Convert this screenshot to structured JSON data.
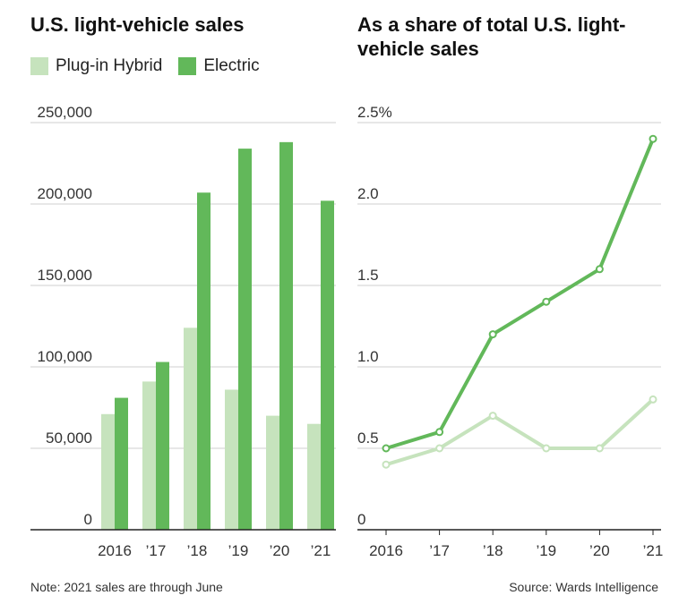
{
  "colors": {
    "phev": "#c6e3bd",
    "ev": "#62b85a",
    "grid": "#cfcfcf",
    "axis": "#222222"
  },
  "note": "Note: 2021 sales are through June",
  "source": "Source: Wards Intelligence",
  "chart_data": [
    {
      "type": "bar",
      "title": "U.S. light-vehicle sales",
      "categories": [
        "2016",
        "’17",
        "’18",
        "’19",
        "’20",
        "’21"
      ],
      "legend": [
        "Plug-in Hybrid",
        "Electric"
      ],
      "series": [
        {
          "name": "Plug-in Hybrid",
          "values": [
            71000,
            91000,
            124000,
            86000,
            70000,
            65000
          ]
        },
        {
          "name": "Electric",
          "values": [
            81000,
            103000,
            207000,
            234000,
            238000,
            202000
          ]
        }
      ],
      "yticks": [
        "250,000",
        "200,000",
        "150,000",
        "100,000",
        "50,000",
        "0"
      ],
      "ylim": [
        0,
        250000
      ],
      "grid": true,
      "legend_position": "top-left"
    },
    {
      "type": "line",
      "title": "As a share of total U.S. light-vehicle sales",
      "categories": [
        "2016",
        "’17",
        "’18",
        "’19",
        "’20",
        "’21"
      ],
      "series": [
        {
          "name": "Plug-in Hybrid",
          "values": [
            0.4,
            0.5,
            0.7,
            0.5,
            0.5,
            0.8
          ]
        },
        {
          "name": "Electric",
          "values": [
            0.5,
            0.6,
            1.2,
            1.4,
            1.6,
            2.4
          ]
        }
      ],
      "yticks": [
        "2.5%",
        "2.0",
        "1.5",
        "1.0",
        "0.5",
        "0"
      ],
      "ylim": [
        0,
        2.5
      ],
      "grid": true
    }
  ]
}
